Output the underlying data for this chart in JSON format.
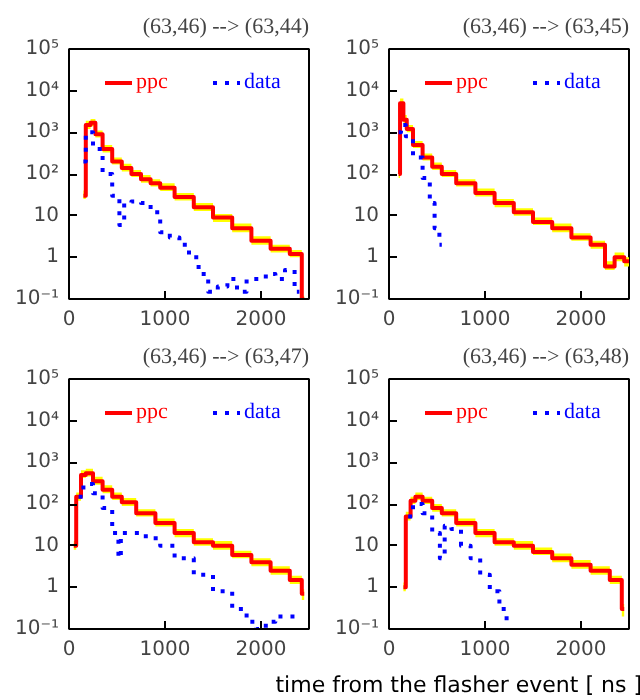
{
  "chart_data": [
    {
      "type": "step",
      "title": "(63,46) --> (63,44)",
      "log": "y",
      "xlim": [
        0,
        2500
      ],
      "xticks": [
        0,
        1000,
        2000
      ],
      "ylim": [
        0.1,
        100000
      ],
      "yticks": [
        {
          "value": 0.1,
          "label": "10⁻¹"
        },
        1,
        10,
        {
          "value": 100,
          "label": "10²"
        },
        {
          "value": 1000,
          "label": "10³"
        },
        {
          "value": 10000,
          "label": "10⁴"
        },
        {
          "value": 100000,
          "label": "10⁵"
        }
      ],
      "grid": false,
      "legend": "top",
      "series": [
        {
          "name": "ppc",
          "color": "#ff0000",
          "line_style": "solid",
          "x": [
            150,
            200,
            250,
            300,
            400,
            500,
            600,
            700,
            800,
            900,
            1000,
            1200,
            1400,
            1600,
            1800,
            2000,
            2200,
            2400,
            2450
          ],
          "values": [
            30,
            1500,
            1700,
            900,
            400,
            200,
            140,
            100,
            75,
            60,
            47,
            28,
            16,
            9,
            5,
            2.5,
            1.6,
            1.2,
            0.1
          ],
          "lower": [
            25,
            1200,
            1400,
            750,
            330,
            170,
            115,
            85,
            62,
            50,
            39,
            23,
            13,
            7,
            4,
            2,
            1.3,
            1,
            0.1
          ],
          "upper": [
            40,
            1900,
            2100,
            1100,
            500,
            250,
            175,
            125,
            95,
            75,
            60,
            35,
            20,
            11,
            6.5,
            3.2,
            2,
            1.5,
            0.12
          ]
        },
        {
          "name": "data",
          "color": "#0000ff",
          "line_style": "dotted",
          "x": [
            150,
            200,
            300,
            400,
            500,
            550,
            600,
            700,
            800,
            900,
            1000,
            1100,
            1200,
            1300,
            1400,
            1500,
            1600,
            1700,
            1800,
            1900,
            2000,
            2100,
            2200,
            2300,
            2400
          ],
          "values": [
            200,
            1000,
            400,
            100,
            30,
            6,
            20,
            22,
            20,
            12,
            4,
            3,
            2,
            1,
            0.4,
            0.15,
            0.2,
            0.3,
            0.15,
            0.3,
            0.3,
            0.4,
            0.3,
            0.5,
            0.15
          ]
        }
      ]
    },
    {
      "type": "step",
      "title": "(63,46) --> (63,45)",
      "log": "y",
      "xlim": [
        0,
        2500
      ],
      "xticks": [
        0,
        1000,
        2000
      ],
      "ylim": [
        0.1,
        100000
      ],
      "yticks": [
        {
          "value": 0.1,
          "label": "10⁻¹"
        },
        1,
        10,
        {
          "value": 100,
          "label": "10²"
        },
        {
          "value": 1000,
          "label": "10³"
        },
        {
          "value": 10000,
          "label": "10⁴"
        },
        {
          "value": 100000,
          "label": "10⁵"
        }
      ],
      "grid": false,
      "legend": "top",
      "series": [
        {
          "name": "ppc",
          "color": "#ff0000",
          "line_style": "solid",
          "x": [
            100,
            130,
            170,
            200,
            300,
            400,
            500,
            600,
            800,
            1000,
            1200,
            1400,
            1600,
            1800,
            2000,
            2200,
            2300,
            2400,
            2500
          ],
          "values": [
            100,
            5000,
            2000,
            1200,
            500,
            250,
            150,
            100,
            60,
            35,
            20,
            12,
            7,
            5,
            3,
            2,
            0.6,
            1,
            0.8
          ],
          "lower": [
            80,
            4000,
            1600,
            1000,
            420,
            210,
            125,
            85,
            50,
            29,
            16,
            10,
            6,
            4,
            2.5,
            1.6,
            0.5,
            0.8,
            0.6
          ],
          "upper": [
            130,
            6500,
            2600,
            1500,
            620,
            310,
            190,
            125,
            75,
            45,
            25,
            15,
            9,
            6.5,
            3.8,
            2.5,
            0.8,
            1.3,
            1
          ]
        },
        {
          "name": "data",
          "color": "#0000ff",
          "line_style": "dotted",
          "x": [
            100,
            150,
            200,
            300,
            400,
            450,
            500,
            550
          ],
          "values": [
            1000,
            1500,
            800,
            250,
            80,
            20,
            5,
            2
          ]
        }
      ]
    },
    {
      "type": "step",
      "title": "(63,46) --> (63,47)",
      "log": "y",
      "xlim": [
        0,
        2500
      ],
      "xticks": [
        0,
        1000,
        2000
      ],
      "ylim": [
        0.1,
        100000
      ],
      "yticks": [
        {
          "value": 0.1,
          "label": "10⁻¹"
        },
        1,
        10,
        {
          "value": 100,
          "label": "10²"
        },
        {
          "value": 1000,
          "label": "10³"
        },
        {
          "value": 10000,
          "label": "10⁴"
        },
        {
          "value": 100000,
          "label": "10⁵"
        }
      ],
      "grid": false,
      "legend": "top",
      "series": [
        {
          "name": "ppc",
          "color": "#ff0000",
          "line_style": "solid",
          "x": [
            50,
            100,
            150,
            200,
            300,
            400,
            500,
            600,
            800,
            1000,
            1200,
            1400,
            1600,
            1800,
            2000,
            2200,
            2400,
            2450
          ],
          "values": [
            10,
            150,
            500,
            550,
            350,
            220,
            150,
            110,
            60,
            35,
            20,
            12,
            10,
            6,
            4,
            2.5,
            1.5,
            0.7
          ],
          "lower": [
            8,
            120,
            420,
            460,
            290,
            180,
            125,
            90,
            50,
            29,
            16,
            10,
            8,
            5,
            3.2,
            2,
            1.2,
            0.5
          ],
          "upper": [
            13,
            190,
            650,
            700,
            450,
            280,
            190,
            140,
            75,
            45,
            25,
            15,
            13,
            7.5,
            5,
            3.2,
            1.9,
            0.9
          ]
        },
        {
          "name": "data",
          "color": "#0000ff",
          "line_style": "dotted",
          "x": [
            100,
            200,
            300,
            400,
            500,
            530,
            550,
            700,
            900,
            1000,
            1200,
            1400,
            1600,
            1800,
            1900,
            2000,
            2100,
            2200,
            2400
          ],
          "values": [
            150,
            300,
            180,
            80,
            20,
            5,
            20,
            20,
            15,
            10,
            5,
            2,
            0.8,
            0.3,
            0.15,
            0.1,
            0.15,
            0.2,
            0.2
          ]
        }
      ]
    },
    {
      "type": "step",
      "title": "(63,46) --> (63,48)",
      "xlabel": "time from the flasher event [ ns ]",
      "log": "y",
      "xlim": [
        0,
        2500
      ],
      "xticks": [
        0,
        1000,
        2000
      ],
      "ylim": [
        0.1,
        100000
      ],
      "yticks": [
        {
          "value": 0.1,
          "label": "10⁻¹"
        },
        1,
        10,
        {
          "value": 100,
          "label": "10²"
        },
        {
          "value": 1000,
          "label": "10³"
        },
        {
          "value": 10000,
          "label": "10⁴"
        },
        {
          "value": 100000,
          "label": "10⁵"
        }
      ],
      "grid": false,
      "legend": "top",
      "series": [
        {
          "name": "ppc",
          "color": "#ff0000",
          "line_style": "solid",
          "x": [
            150,
            200,
            250,
            300,
            400,
            500,
            600,
            800,
            1000,
            1200,
            1400,
            1600,
            1800,
            2000,
            2200,
            2400,
            2450
          ],
          "values": [
            1,
            50,
            120,
            150,
            120,
            80,
            60,
            35,
            20,
            12,
            10,
            7,
            5,
            3.5,
            2.5,
            1.5,
            0.3
          ],
          "lower": [
            0.8,
            40,
            100,
            125,
            100,
            65,
            50,
            29,
            16,
            10,
            8,
            6,
            4,
            2.8,
            2,
            1.2,
            0.2
          ],
          "upper": [
            1.3,
            65,
            150,
            190,
            150,
            100,
            75,
            45,
            25,
            15,
            13,
            9,
            6.5,
            4.5,
            3.2,
            1.9,
            0.4
          ]
        },
        {
          "name": "data",
          "color": "#0000ff",
          "line_style": "dotted",
          "x": [
            200,
            300,
            400,
            500,
            560,
            600,
            700,
            800,
            900,
            1000,
            1100,
            1200,
            1250
          ],
          "values": [
            50,
            100,
            60,
            20,
            5,
            30,
            25,
            10,
            5,
            2,
            0.8,
            0.3,
            0.15
          ]
        }
      ]
    }
  ]
}
